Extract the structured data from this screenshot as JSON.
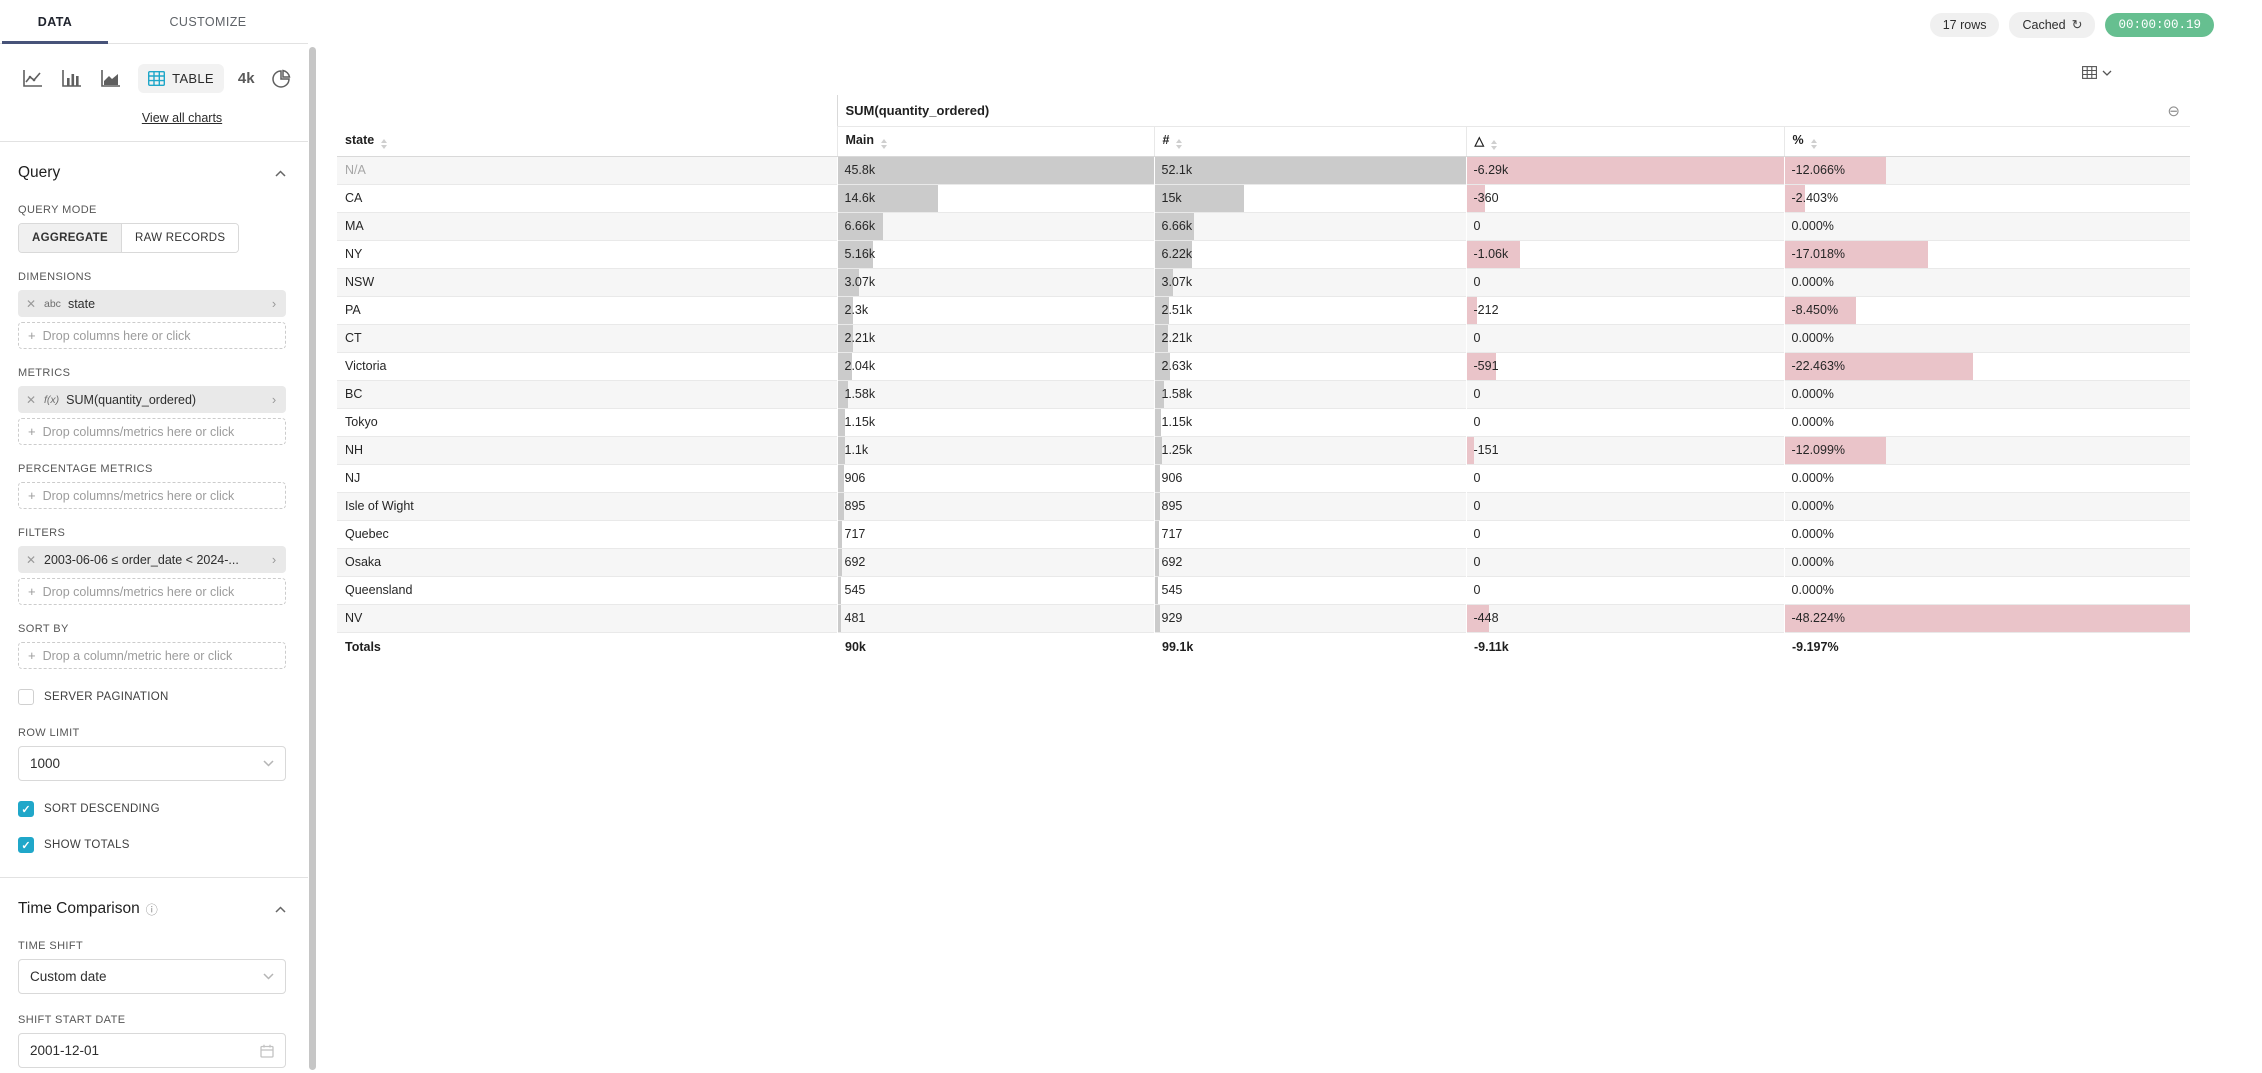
{
  "colors": {
    "accent": "#20a7c9",
    "tab_ink": "#475379",
    "success_pill": "#66bf90",
    "bar_neutral": "#cbcbcb",
    "bar_negative": "#eac4c9"
  },
  "panel": {
    "tabs": {
      "data": "DATA",
      "customize": "CUSTOMIZE"
    },
    "viz_picker": {
      "selected_label": "TABLE",
      "big_number_preview": "4k",
      "view_all_link": "View all charts"
    },
    "query": {
      "title": "Query",
      "query_mode_label": "QUERY MODE",
      "aggregate_label": "AGGREGATE",
      "raw_records_label": "RAW RECORDS",
      "dimensions_label": "DIMENSIONS",
      "dimension_pill": {
        "type": "abc",
        "label": "state"
      },
      "drop_columns_placeholder": "Drop columns here or click",
      "metrics_label": "METRICS",
      "metric_pill": {
        "type": "f(x)",
        "label": "SUM(quantity_ordered)"
      },
      "drop_columns_metrics_placeholder": "Drop columns/metrics here or click",
      "percentage_metrics_label": "PERCENTAGE METRICS",
      "filters_label": "FILTERS",
      "filter_pill": {
        "label": "2003-06-06 ≤ order_date < 2024-..."
      },
      "sort_by_label": "SORT BY",
      "sort_by_placeholder": "Drop a column/metric here or click",
      "server_pagination_label": "SERVER PAGINATION",
      "server_pagination_checked": false,
      "row_limit_label": "ROW LIMIT",
      "row_limit_value": "1000",
      "sort_descending_label": "SORT DESCENDING",
      "sort_descending_checked": true,
      "show_totals_label": "SHOW TOTALS",
      "show_totals_checked": true
    },
    "time_comparison": {
      "title": "Time Comparison",
      "time_shift_label": "TIME SHIFT",
      "time_shift_value": "Custom date",
      "shift_start_date_label": "SHIFT START DATE",
      "shift_start_date_value": "2001-12-01"
    }
  },
  "toolbar": {
    "rows_badge": "17 rows",
    "cached_label": "Cached",
    "timer": "00:00:00.19"
  },
  "chart_data": {
    "type": "table",
    "group_header": "SUM(quantity_ordered)",
    "columns": [
      "state",
      "Main",
      "#",
      "△",
      "%"
    ],
    "bar_scaling": "cell bars sized relative to column max absolute value",
    "rows": [
      {
        "state": "N/A",
        "na": true,
        "main": "45.8k",
        "main_v": 45800,
        "num": "52.1k",
        "num_v": 52100,
        "delta": "-6.29k",
        "delta_v": -6290,
        "pct": "-12.066%",
        "pct_v": -12.066
      },
      {
        "state": "CA",
        "na": false,
        "main": "14.6k",
        "main_v": 14600,
        "num": "15k",
        "num_v": 15000,
        "delta": "-360",
        "delta_v": -360,
        "pct": "-2.403%",
        "pct_v": -2.403
      },
      {
        "state": "MA",
        "na": false,
        "main": "6.66k",
        "main_v": 6660,
        "num": "6.66k",
        "num_v": 6660,
        "delta": "0",
        "delta_v": 0,
        "pct": "0.000%",
        "pct_v": 0
      },
      {
        "state": "NY",
        "na": false,
        "main": "5.16k",
        "main_v": 5160,
        "num": "6.22k",
        "num_v": 6220,
        "delta": "-1.06k",
        "delta_v": -1060,
        "pct": "-17.018%",
        "pct_v": -17.018
      },
      {
        "state": "NSW",
        "na": false,
        "main": "3.07k",
        "main_v": 3070,
        "num": "3.07k",
        "num_v": 3070,
        "delta": "0",
        "delta_v": 0,
        "pct": "0.000%",
        "pct_v": 0
      },
      {
        "state": "PA",
        "na": false,
        "main": "2.3k",
        "main_v": 2300,
        "num": "2.51k",
        "num_v": 2510,
        "delta": "-212",
        "delta_v": -212,
        "pct": "-8.450%",
        "pct_v": -8.45
      },
      {
        "state": "CT",
        "na": false,
        "main": "2.21k",
        "main_v": 2210,
        "num": "2.21k",
        "num_v": 2210,
        "delta": "0",
        "delta_v": 0,
        "pct": "0.000%",
        "pct_v": 0
      },
      {
        "state": "Victoria",
        "na": false,
        "main": "2.04k",
        "main_v": 2040,
        "num": "2.63k",
        "num_v": 2630,
        "delta": "-591",
        "delta_v": -591,
        "pct": "-22.463%",
        "pct_v": -22.463
      },
      {
        "state": "BC",
        "na": false,
        "main": "1.58k",
        "main_v": 1580,
        "num": "1.58k",
        "num_v": 1580,
        "delta": "0",
        "delta_v": 0,
        "pct": "0.000%",
        "pct_v": 0
      },
      {
        "state": "Tokyo",
        "na": false,
        "main": "1.15k",
        "main_v": 1150,
        "num": "1.15k",
        "num_v": 1150,
        "delta": "0",
        "delta_v": 0,
        "pct": "0.000%",
        "pct_v": 0
      },
      {
        "state": "NH",
        "na": false,
        "main": "1.1k",
        "main_v": 1100,
        "num": "1.25k",
        "num_v": 1250,
        "delta": "-151",
        "delta_v": -151,
        "pct": "-12.099%",
        "pct_v": -12.099
      },
      {
        "state": "NJ",
        "na": false,
        "main": "906",
        "main_v": 906,
        "num": "906",
        "num_v": 906,
        "delta": "0",
        "delta_v": 0,
        "pct": "0.000%",
        "pct_v": 0
      },
      {
        "state": "Isle of Wight",
        "na": false,
        "main": "895",
        "main_v": 895,
        "num": "895",
        "num_v": 895,
        "delta": "0",
        "delta_v": 0,
        "pct": "0.000%",
        "pct_v": 0
      },
      {
        "state": "Quebec",
        "na": false,
        "main": "717",
        "main_v": 717,
        "num": "717",
        "num_v": 717,
        "delta": "0",
        "delta_v": 0,
        "pct": "0.000%",
        "pct_v": 0
      },
      {
        "state": "Osaka",
        "na": false,
        "main": "692",
        "main_v": 692,
        "num": "692",
        "num_v": 692,
        "delta": "0",
        "delta_v": 0,
        "pct": "0.000%",
        "pct_v": 0
      },
      {
        "state": "Queensland",
        "na": false,
        "main": "545",
        "main_v": 545,
        "num": "545",
        "num_v": 545,
        "delta": "0",
        "delta_v": 0,
        "pct": "0.000%",
        "pct_v": 0
      },
      {
        "state": "NV",
        "na": false,
        "main": "481",
        "main_v": 481,
        "num": "929",
        "num_v": 929,
        "delta": "-448",
        "delta_v": -448,
        "pct": "-48.224%",
        "pct_v": -48.224
      }
    ],
    "totals": {
      "label": "Totals",
      "main": "90k",
      "num": "99.1k",
      "delta": "-9.11k",
      "pct": "-9.197%"
    }
  }
}
